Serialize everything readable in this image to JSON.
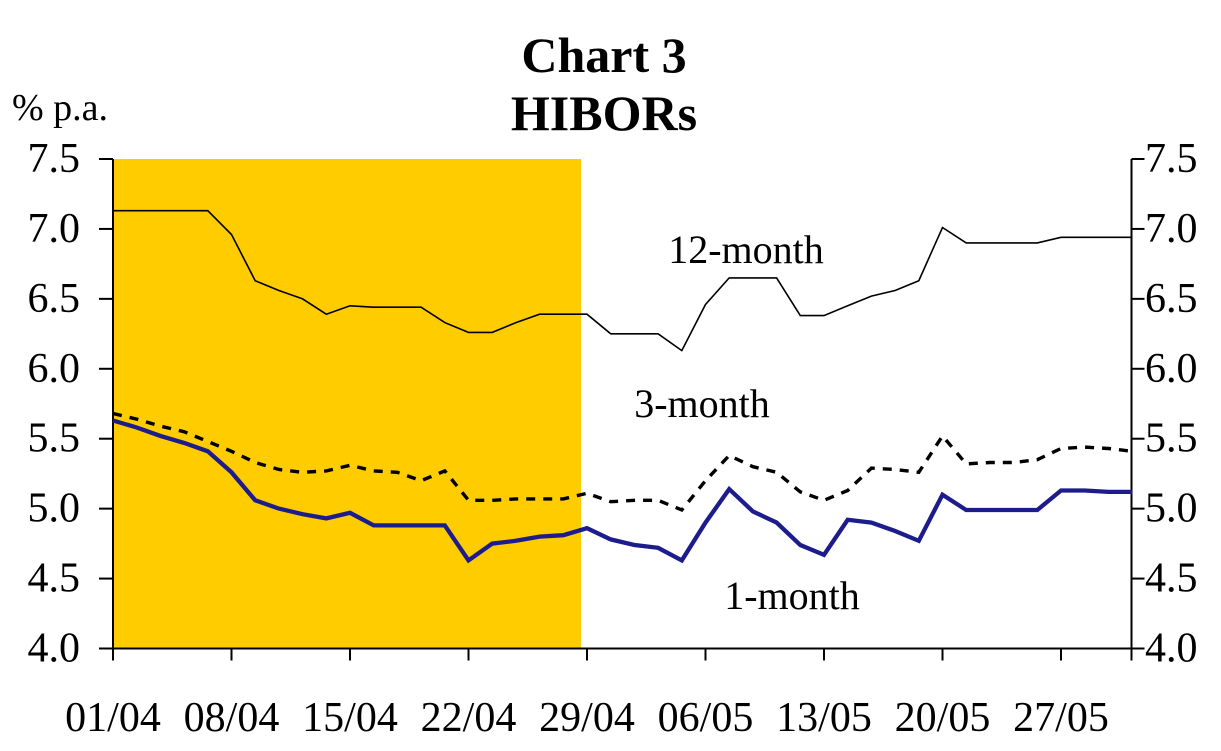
{
  "chart_data": {
    "type": "line",
    "title": "Chart 3",
    "subtitle": "HIBORs",
    "ylabel": "% p.a.",
    "ylim": [
      4.0,
      7.5
    ],
    "y_ticks": [
      7.5,
      7.0,
      6.5,
      6.0,
      5.5,
      5.0,
      4.5,
      4.0
    ],
    "y_tick_labels": [
      "7.5",
      "7.0",
      "6.5",
      "6.0",
      "5.5",
      "5.0",
      "4.5",
      "4.0"
    ],
    "y_axis_sides": [
      "left",
      "right"
    ],
    "x_tick_labels": [
      "01/04",
      "08/04",
      "15/04",
      "22/04",
      "29/04",
      "06/05",
      "13/05",
      "20/05",
      "27/05"
    ],
    "x_points_per_tick": 5,
    "n_points": 44,
    "grid": "off",
    "legend": "inline-labels",
    "shaded_region": {
      "start_index": 0,
      "end_index": 19.75,
      "color": "#FFCC00",
      "note": "solid gold band covering April up to 29/04 tick"
    },
    "axis_color": "#000000",
    "series": [
      {
        "name": "12-month",
        "style": "solid",
        "color": "#000000",
        "width": 1.6,
        "values": [
          7.13,
          7.13,
          7.13,
          7.13,
          7.13,
          6.96,
          6.63,
          6.56,
          6.5,
          6.39,
          6.45,
          6.44,
          6.44,
          6.44,
          6.33,
          6.26,
          6.26,
          6.33,
          6.39,
          6.39,
          6.39,
          6.25,
          6.25,
          6.25,
          6.13,
          6.46,
          6.65,
          6.65,
          6.65,
          6.38,
          6.38,
          6.45,
          6.52,
          6.56,
          6.63,
          7.01,
          6.9,
          6.9,
          6.9,
          6.9,
          6.94,
          6.94,
          6.94,
          6.94
        ]
      },
      {
        "name": "3-month",
        "style": "dashed",
        "color": "#000000",
        "width": 3.4,
        "values": [
          5.68,
          5.64,
          5.59,
          5.55,
          5.48,
          5.41,
          5.33,
          5.28,
          5.26,
          5.27,
          5.31,
          5.27,
          5.26,
          5.2,
          5.27,
          5.06,
          5.06,
          5.07,
          5.07,
          5.07,
          5.11,
          5.05,
          5.06,
          5.06,
          4.99,
          5.2,
          5.38,
          5.3,
          5.26,
          5.12,
          5.06,
          5.13,
          5.29,
          5.28,
          5.26,
          5.52,
          5.32,
          5.33,
          5.33,
          5.35,
          5.43,
          5.44,
          5.43,
          5.41
        ]
      },
      {
        "name": "1-month",
        "style": "solid",
        "color": "#1C1C8C",
        "width": 4.3,
        "values": [
          5.63,
          5.58,
          5.52,
          5.47,
          5.41,
          5.26,
          5.06,
          5.0,
          4.96,
          4.93,
          4.97,
          4.88,
          4.88,
          4.88,
          4.88,
          4.63,
          4.75,
          4.77,
          4.8,
          4.81,
          4.86,
          4.78,
          4.74,
          4.72,
          4.63,
          4.9,
          5.14,
          4.98,
          4.9,
          4.74,
          4.67,
          4.92,
          4.9,
          4.84,
          4.77,
          5.1,
          4.99,
          4.99,
          4.99,
          4.99,
          5.13,
          5.13,
          5.12,
          5.12
        ]
      }
    ]
  }
}
